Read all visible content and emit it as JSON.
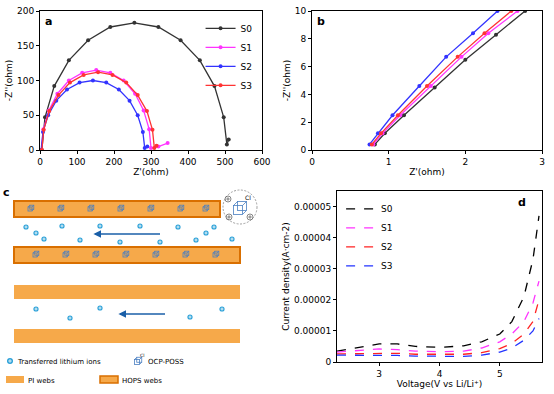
{
  "chart_data": [
    {
      "panel_label": "a",
      "type": "line",
      "x_label": "Z'(ohm)",
      "y_label": "-Z''(ohm)",
      "xlim": [
        0,
        600
      ],
      "xticks": [
        0,
        100,
        200,
        300,
        400,
        500,
        600
      ],
      "ylim": [
        0,
        200
      ],
      "yticks": [
        0,
        50,
        100,
        150,
        200
      ],
      "grid": false,
      "legend": "top-right",
      "marker": "circle",
      "line_style": "solid",
      "series": [
        {
          "name": "S0",
          "color": "#333333",
          "x": [
            5,
            13.5,
            38.5,
            78,
            130,
            190,
            255,
            320,
            380,
            432,
            471.5,
            496.5,
            505,
            510
          ],
          "values": [
            0,
            47,
            92,
            129,
            158,
            177,
            183,
            177,
            158,
            129,
            92,
            47,
            8,
            15
          ]
        },
        {
          "name": "S1",
          "color": "#ff33ff",
          "x": [
            4,
            9,
            24,
            47,
            78,
            114,
            152,
            190,
            226,
            257,
            280,
            295,
            300,
            320,
            345
          ],
          "values": [
            0,
            30,
            57,
            81,
            100,
            111,
            115,
            111,
            100,
            81,
            57,
            30,
            3,
            5,
            10
          ]
        },
        {
          "name": "S2",
          "color": "#3333ff",
          "x": [
            3,
            8,
            22,
            44,
            73,
            107,
            143,
            179,
            213,
            242,
            264,
            278,
            283,
            290
          ],
          "values": [
            0,
            26,
            50,
            71,
            87,
            97,
            100,
            97,
            87,
            71,
            50,
            26,
            3,
            5
          ]
        },
        {
          "name": "S3",
          "color": "#ff3333",
          "x": [
            5,
            10,
            25,
            50,
            81,
            118,
            157,
            196,
            233,
            264,
            289,
            304,
            309,
            315
          ],
          "values": [
            0,
            29,
            56,
            79,
            97,
            108,
            112,
            108,
            97,
            79,
            56,
            29,
            3,
            6
          ]
        }
      ]
    },
    {
      "panel_label": "b",
      "type": "line",
      "x_label": "Z'(ohm)",
      "y_label": "-Z''(ohm)",
      "xlim": [
        0,
        3
      ],
      "xticks": [
        0,
        1,
        2,
        3
      ],
      "ylim": [
        0,
        10
      ],
      "yticks": [
        0,
        2,
        4,
        6,
        8,
        10
      ],
      "grid": false,
      "marker": "circle",
      "line_style": "solid",
      "series": [
        {
          "color": "#333333",
          "x": [
            0.82,
            0.95,
            1.2,
            1.6,
            2.0,
            2.4,
            2.78
          ],
          "values": [
            0.4,
            1.2,
            2.5,
            4.5,
            6.5,
            8.3,
            10
          ]
        },
        {
          "color": "#ff33ff",
          "x": [
            0.8,
            0.92,
            1.15,
            1.55,
            1.95,
            2.3,
            2.68
          ],
          "values": [
            0.4,
            1.2,
            2.5,
            4.6,
            6.7,
            8.4,
            10
          ]
        },
        {
          "color": "#3333ff",
          "x": [
            0.75,
            0.86,
            1.05,
            1.4,
            1.75,
            2.1,
            2.42
          ],
          "values": [
            0.4,
            1.2,
            2.5,
            4.6,
            6.7,
            8.4,
            10
          ]
        },
        {
          "color": "#ff3333",
          "x": [
            0.78,
            0.9,
            1.12,
            1.5,
            1.9,
            2.25,
            2.6
          ],
          "values": [
            0.4,
            1.2,
            2.5,
            4.6,
            6.7,
            8.4,
            10
          ]
        }
      ]
    },
    {
      "panel_label": "d",
      "type": "line",
      "x_label": "Voltage(V vs Li/Li⁺)",
      "y_label": "Current density(A·cm-2)",
      "xlim": [
        2.3,
        5.7
      ],
      "xticks": [
        3,
        4,
        5
      ],
      "ylim": [
        0,
        5.5e-05
      ],
      "yticks": [
        0,
        {
          "value": 1e-05,
          "label": "0.00001"
        },
        {
          "value": 2e-05,
          "label": "0.00002"
        },
        {
          "value": 3e-05,
          "label": "0.00003"
        },
        {
          "value": 4e-05,
          "label": "0.00004"
        },
        {
          "value": 5e-05,
          "label": "0.00005"
        }
      ],
      "grid": false,
      "legend": "top-left",
      "line_style": "dash",
      "series": [
        {
          "name": "S0",
          "color": "#000000",
          "x": [
            2.3,
            2.6,
            3.0,
            3.3,
            3.6,
            4.0,
            4.4,
            4.7,
            5.0,
            5.2,
            5.4,
            5.55,
            5.65
          ],
          "values": [
            3.5e-06,
            4.5e-06,
            5.8e-06,
            5.8e-06,
            5e-06,
            4.7e-06,
            5.2e-06,
            6.5e-06,
            9e-06,
            1.3e-05,
            2.1e-05,
            3.3e-05,
            4.7e-05
          ]
        },
        {
          "name": "S1",
          "color": "#ff33ff",
          "x": [
            2.3,
            2.6,
            3.0,
            3.3,
            3.6,
            4.0,
            4.4,
            4.7,
            5.0,
            5.2,
            5.4,
            5.55,
            5.65
          ],
          "values": [
            3.2e-06,
            3.6e-06,
            4.2e-06,
            4e-06,
            3.5e-06,
            3.3e-06,
            3.5e-06,
            4.5e-06,
            6.5e-06,
            9e-06,
            1.3e-05,
            1.9e-05,
            2.6e-05
          ]
        },
        {
          "name": "S2",
          "color": "#ff2222",
          "x": [
            2.3,
            2.6,
            3.0,
            3.3,
            3.6,
            4.0,
            4.4,
            4.7,
            5.0,
            5.2,
            5.4,
            5.55,
            5.65
          ],
          "values": [
            2.6e-06,
            2.7e-06,
            2.9e-06,
            2.8e-06,
            2.5e-06,
            2.4e-06,
            2.5e-06,
            3e-06,
            4.3e-06,
            6e-06,
            9e-06,
            1.3e-05,
            2e-05
          ]
        },
        {
          "name": "S3",
          "color": "#2233ff",
          "x": [
            2.3,
            2.6,
            3.0,
            3.3,
            3.6,
            4.0,
            4.4,
            4.7,
            5.0,
            5.2,
            5.4,
            5.55,
            5.65
          ],
          "values": [
            2.2e-06,
            2.2e-06,
            2.3e-06,
            2.1e-06,
            1.9e-06,
            1.8e-06,
            1.8e-06,
            2.2e-06,
            3.2e-06,
            4.5e-06,
            7e-06,
            1e-05,
            1.4e-05
          ]
        }
      ]
    }
  ],
  "diagram": {
    "panel_label": "c",
    "cube_label": "Cl",
    "legend": [
      {
        "text": "Transferred lithium ions",
        "icon": "ion"
      },
      {
        "text": "OCP-POSS",
        "icon": "poss"
      },
      {
        "text": "PI webs",
        "icon": "pi"
      },
      {
        "text": "HOPS webs",
        "icon": "hops"
      }
    ]
  }
}
